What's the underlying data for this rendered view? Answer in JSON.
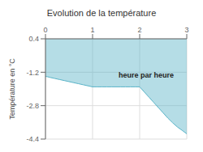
{
  "chart_data": {
    "type": "area",
    "title": "Evolution de la température",
    "y_label": "Température en °C",
    "annotations": [
      {
        "text": "heure par heure",
        "x": 1.55,
        "y": -1.35
      }
    ],
    "x": [
      0,
      0.05,
      0.1,
      0.2,
      0.3,
      0.4,
      0.5,
      0.6,
      0.7,
      0.8,
      0.9,
      1.0,
      1.1,
      1.2,
      1.3,
      1.4,
      1.5,
      1.6,
      1.7,
      1.8,
      1.9,
      2.0,
      2.1,
      2.2,
      2.3,
      2.4,
      2.5,
      2.6,
      2.7,
      2.8,
      2.9,
      3.0
    ],
    "values": [
      -1.4,
      -1.42,
      -1.45,
      -1.5,
      -1.55,
      -1.6,
      -1.65,
      -1.7,
      -1.75,
      -1.8,
      -1.85,
      -1.9,
      -1.9,
      -1.9,
      -1.9,
      -1.9,
      -1.9,
      -1.9,
      -1.9,
      -1.9,
      -1.9,
      -1.9,
      -2.15,
      -2.4,
      -2.65,
      -2.9,
      -3.15,
      -3.4,
      -3.62,
      -3.82,
      -3.98,
      -4.15
    ],
    "color": "#5ab4c8",
    "xlim": [
      0,
      3
    ],
    "ylim": [
      -4.4,
      0.4
    ],
    "xticks": [
      0,
      1,
      2,
      3
    ],
    "yticks": [
      0.4,
      -1.2,
      -2.8,
      -4.4
    ],
    "grid": true
  }
}
